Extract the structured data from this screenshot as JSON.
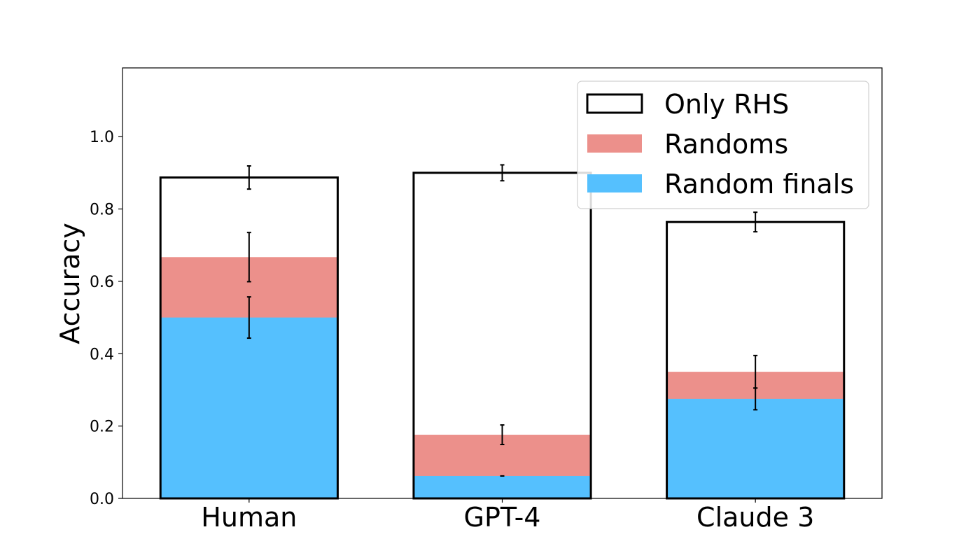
{
  "chart_data": {
    "type": "bar",
    "title": "",
    "xlabel": "",
    "ylabel": "Accuracy",
    "ylim": [
      0,
      1.19
    ],
    "yticks": [
      "0.0",
      "0.2",
      "0.4",
      "0.6",
      "0.8",
      "1.0"
    ],
    "categories": [
      "Human",
      "GPT-4",
      "Claude 3"
    ],
    "grid": false,
    "legend_position": "top-right",
    "series": [
      {
        "name": "Only RHS",
        "style": "outline",
        "color": "#000000",
        "values": [
          0.887,
          0.9,
          0.764
        ],
        "errors": [
          0.032,
          0.022,
          0.027
        ]
      },
      {
        "name": "Randoms",
        "style": "filled",
        "color": "#ec908b",
        "values": [
          0.667,
          0.176,
          0.35
        ],
        "errors": [
          0.068,
          0.027,
          0.045
        ]
      },
      {
        "name": "Random finals",
        "style": "filled",
        "color": "#55c0fe",
        "values": [
          0.5,
          0.062,
          0.275
        ],
        "errors": [
          0.057,
          0.0,
          0.03
        ]
      }
    ]
  }
}
